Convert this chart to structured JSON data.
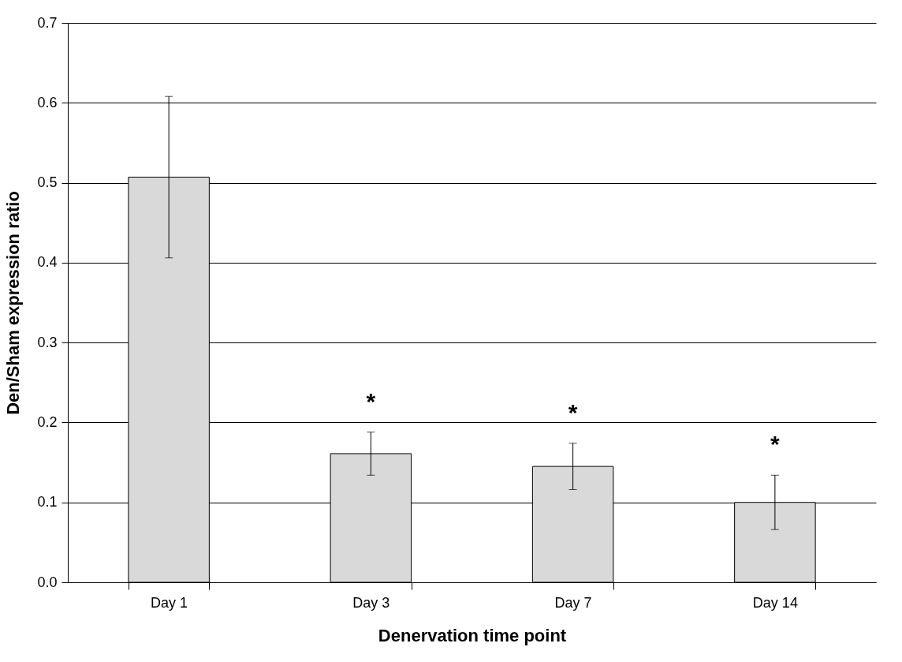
{
  "chart_data": {
    "type": "bar",
    "xlabel": "Denervation time point",
    "ylabel": "Den/Sham expression ratio",
    "categories": [
      "Day 1",
      "Day 3",
      "Day 7",
      "Day 14"
    ],
    "values": [
      0.507,
      0.161,
      0.145,
      0.1
    ],
    "errors": [
      0.101,
      0.027,
      0.029,
      0.034
    ],
    "color": "#d9d9d9",
    "ylim": [
      0,
      0.7
    ],
    "yticks": [
      {
        "value": 0,
        "label": "0.0"
      },
      0.1,
      0.2,
      0.3,
      0.4,
      0.5,
      0.6,
      0.7
    ],
    "grid": "y",
    "annotations": [
      "*",
      "*",
      "*"
    ]
  }
}
